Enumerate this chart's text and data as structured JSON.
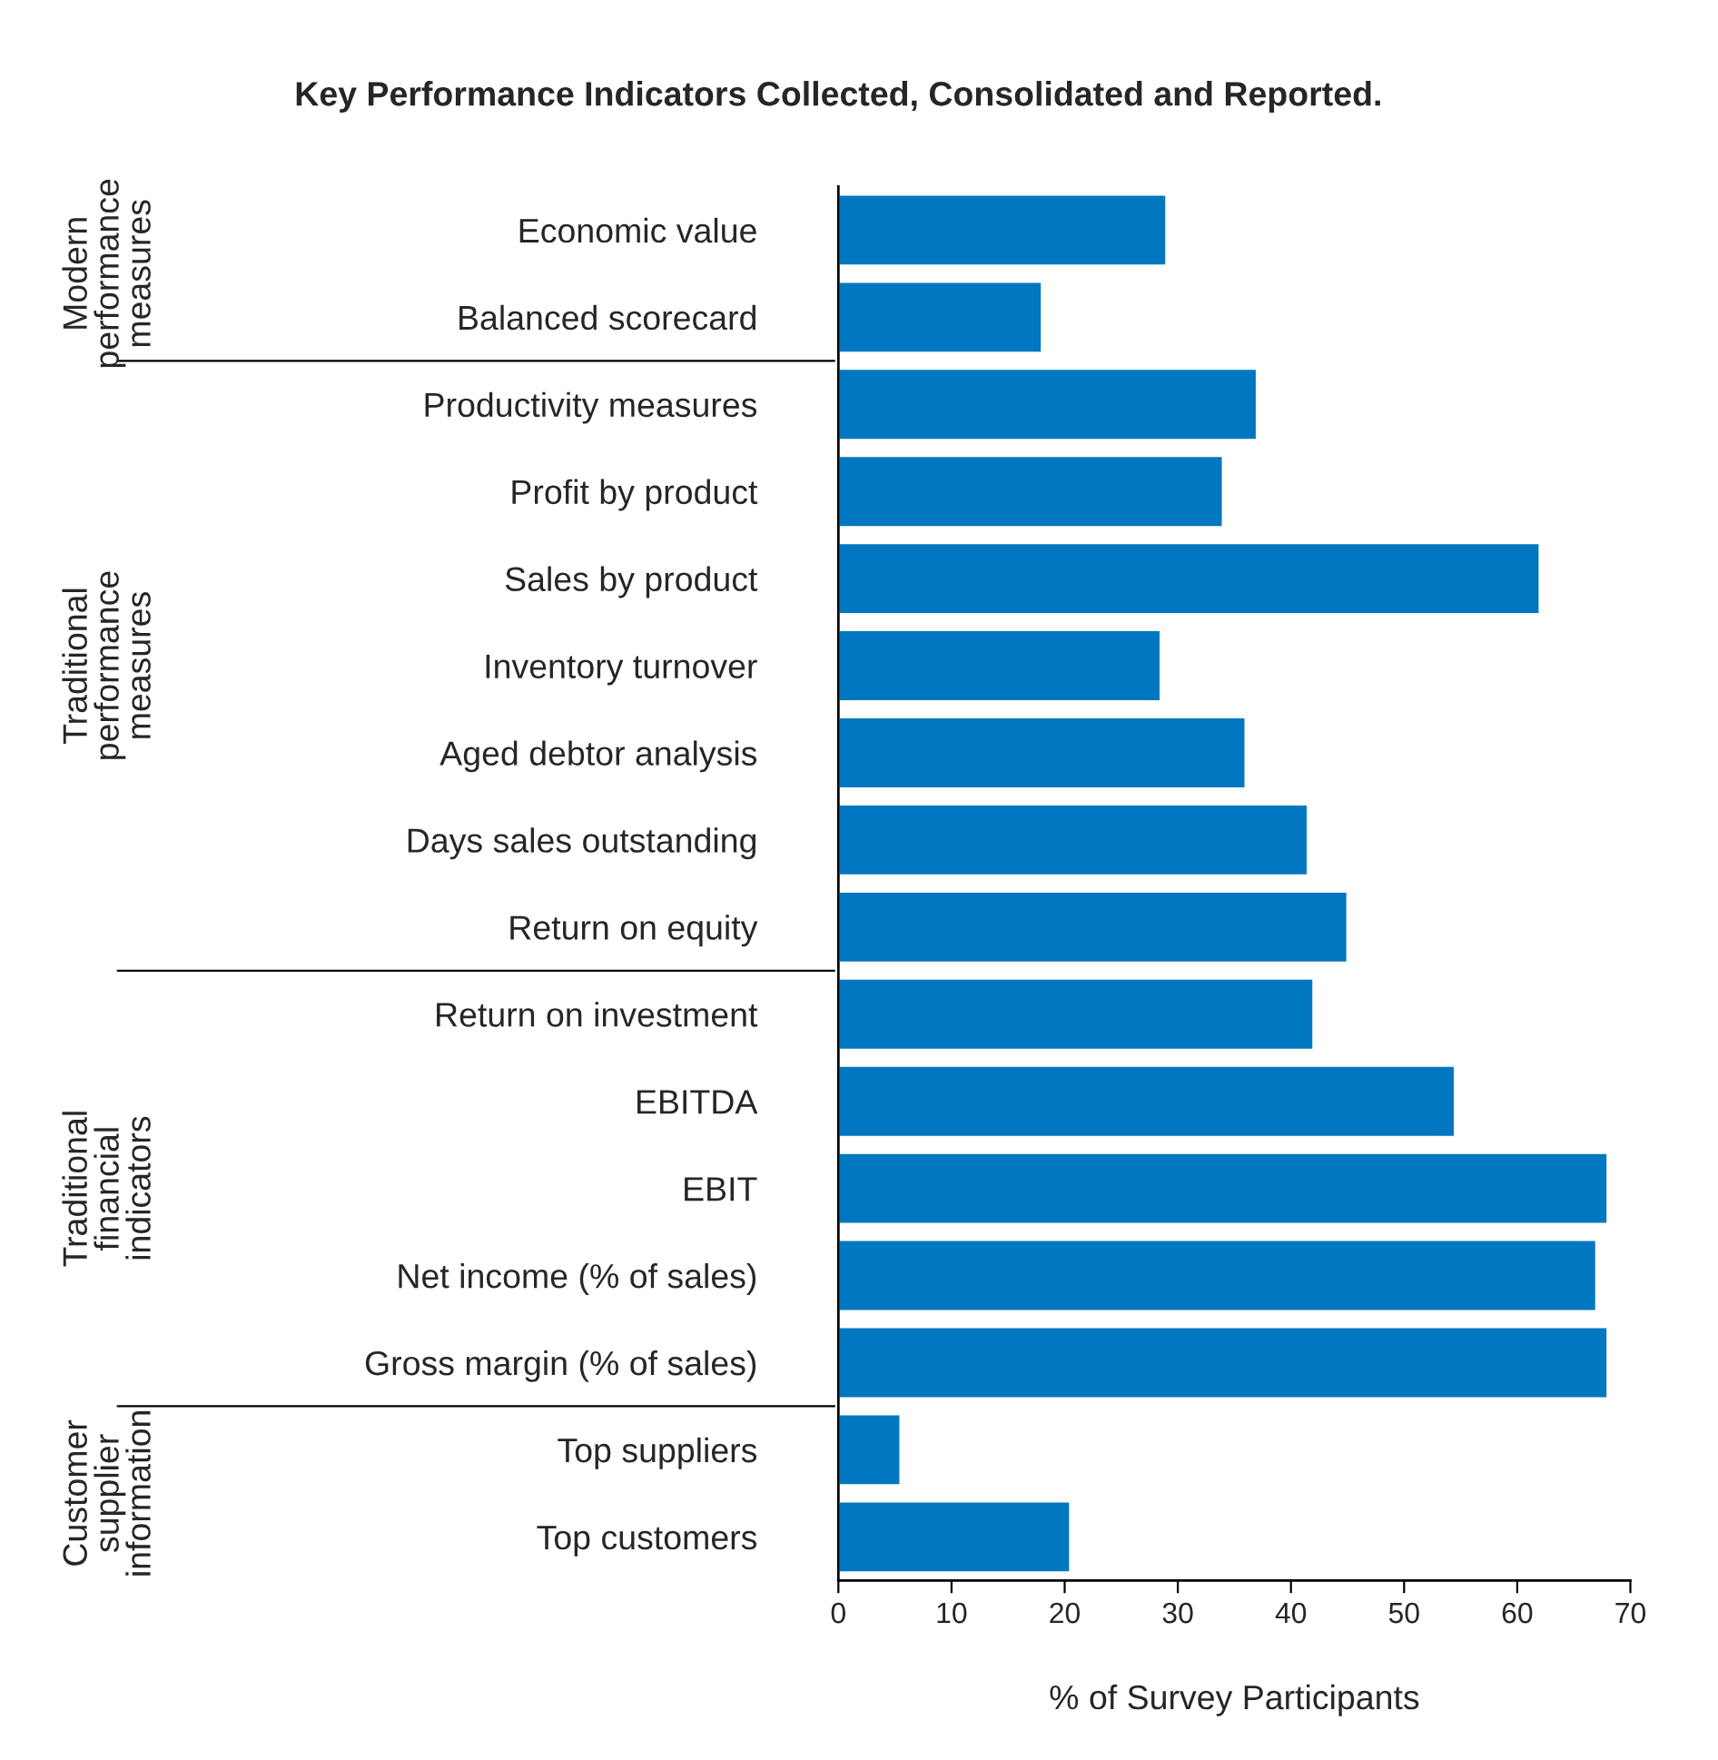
{
  "chart_data": {
    "type": "bar",
    "orientation": "horizontal",
    "title": "Key Performance Indicators Collected, Consolidated and Reported.",
    "xlabel": "% of Survey Participants",
    "categories": [
      "Economic value",
      "Balanced scorecard",
      "Productivity measures",
      "Profit by product",
      "Sales by product",
      "Inventory turnover",
      "Aged debtor analysis",
      "Days sales outstanding",
      "Return on equity",
      "Return on investment",
      "EBITDA",
      "EBIT",
      "Net income (% of sales)",
      "Gross margin (% of sales)",
      "Top suppliers",
      "Top customers"
    ],
    "values": [
      29,
      18,
      37,
      34,
      62,
      28.5,
      36,
      41.5,
      45,
      42,
      54.5,
      68,
      67,
      68,
      5.5,
      20.5
    ],
    "color": "#0077c0",
    "xlim": [
      0,
      70
    ],
    "xticks": [
      0,
      10,
      20,
      30,
      40,
      50,
      60,
      70
    ],
    "grid": false,
    "legend": false,
    "annotations": [
      "Modern\nperformance\nmeasures",
      "Traditional\nperformance\nmeasures",
      "Traditional\nfinancial\nindicators",
      "Customer\nsupplier\ninformation"
    ]
  }
}
